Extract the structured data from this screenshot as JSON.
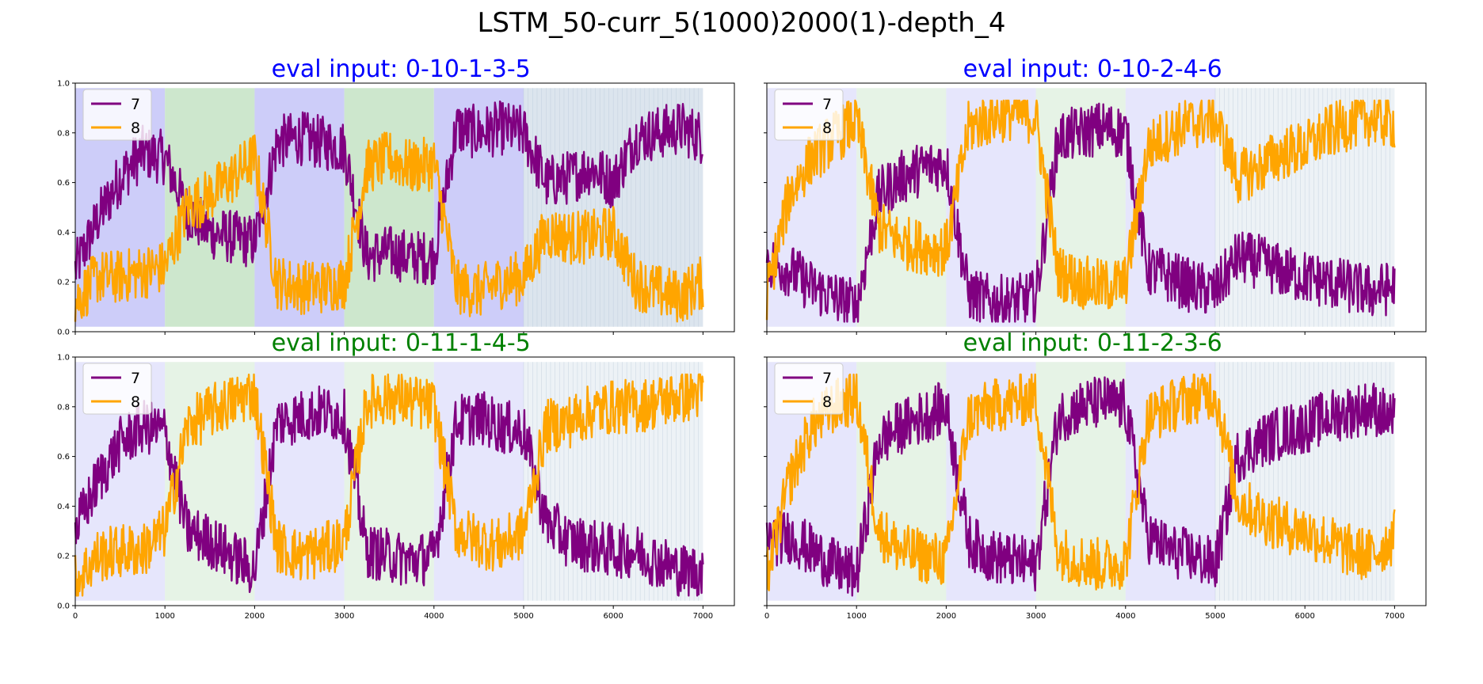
{
  "figure": {
    "suptitle": "LSTM_50-curr_5(1000)2000(1)-depth_4"
  },
  "colors": {
    "series_7": "#800080",
    "series_8": "#ffa500",
    "title_blue": "#0000ff",
    "title_green": "#008000",
    "band_blue": "#c8c8f8",
    "band_green": "#c8e4c8",
    "band_slate": "#d8e2ec"
  },
  "chart_data": [
    {
      "type": "line",
      "title": "eval input: 0-10-1-3-5",
      "title_color": "blue",
      "xlim": [
        0,
        7350
      ],
      "ylim": [
        0.0,
        1.0
      ],
      "x_ticks": [],
      "y_ticks": [
        "0.0",
        "0.2",
        "0.4",
        "0.6",
        "0.8",
        "1.0"
      ],
      "legend": {
        "placement": "upper-left",
        "entries": [
          "7",
          "8"
        ]
      },
      "bands": [
        {
          "x0": 0,
          "x1": 1000,
          "kind": "blue"
        },
        {
          "x0": 1000,
          "x1": 2000,
          "kind": "green"
        },
        {
          "x0": 2000,
          "x1": 3000,
          "kind": "blue"
        },
        {
          "x0": 3000,
          "x1": 4000,
          "kind": "green"
        },
        {
          "x0": 4000,
          "x1": 5000,
          "kind": "blue"
        },
        {
          "x0": 5000,
          "x1": 7000,
          "kind": "slate"
        }
      ],
      "band_opacity": 0.9,
      "series": [
        {
          "name": "7",
          "color": "purple",
          "x": [
            0,
            250,
            500,
            750,
            1000,
            1250,
            1500,
            1750,
            2000,
            2250,
            2500,
            2750,
            3000,
            3250,
            3500,
            3750,
            4000,
            4250,
            4500,
            4750,
            5000,
            5250,
            5500,
            5750,
            6000,
            6250,
            6500,
            6750,
            7000
          ],
          "y": [
            0.25,
            0.45,
            0.62,
            0.72,
            0.7,
            0.48,
            0.4,
            0.38,
            0.36,
            0.76,
            0.78,
            0.76,
            0.74,
            0.3,
            0.32,
            0.3,
            0.3,
            0.82,
            0.8,
            0.82,
            0.8,
            0.6,
            0.62,
            0.66,
            0.6,
            0.78,
            0.8,
            0.82,
            0.78
          ]
        },
        {
          "name": "8",
          "color": "orange",
          "x": [
            0,
            250,
            500,
            750,
            1000,
            1250,
            1500,
            1750,
            2000,
            2250,
            2500,
            2750,
            3000,
            3250,
            3500,
            3750,
            4000,
            4250,
            4500,
            4750,
            5000,
            5250,
            5500,
            5750,
            6000,
            6250,
            6500,
            6750,
            7000
          ],
          "y": [
            0.12,
            0.22,
            0.22,
            0.24,
            0.26,
            0.5,
            0.55,
            0.62,
            0.7,
            0.2,
            0.18,
            0.18,
            0.2,
            0.66,
            0.7,
            0.66,
            0.68,
            0.18,
            0.16,
            0.2,
            0.22,
            0.4,
            0.38,
            0.38,
            0.4,
            0.2,
            0.16,
            0.14,
            0.2
          ]
        }
      ]
    },
    {
      "type": "line",
      "title": "eval input: 0-10-2-4-6",
      "title_color": "blue",
      "xlim": [
        0,
        7350
      ],
      "ylim": [
        0.0,
        1.0
      ],
      "x_ticks": [],
      "y_ticks": [],
      "legend": {
        "placement": "upper-left",
        "entries": [
          "7",
          "8"
        ]
      },
      "bands": [
        {
          "x0": 0,
          "x1": 1000,
          "kind": "blue"
        },
        {
          "x0": 1000,
          "x1": 2000,
          "kind": "green"
        },
        {
          "x0": 2000,
          "x1": 3000,
          "kind": "blue"
        },
        {
          "x0": 3000,
          "x1": 4000,
          "kind": "green"
        },
        {
          "x0": 4000,
          "x1": 5000,
          "kind": "blue"
        },
        {
          "x0": 5000,
          "x1": 7000,
          "kind": "slate"
        }
      ],
      "band_opacity": 0.45,
      "series": [
        {
          "name": "7",
          "color": "purple",
          "x": [
            0,
            250,
            500,
            750,
            1000,
            1250,
            1500,
            1750,
            2000,
            2250,
            2500,
            2750,
            3000,
            3250,
            3500,
            3750,
            4000,
            4250,
            4500,
            4750,
            5000,
            5250,
            5500,
            5750,
            6000,
            6250,
            6500,
            6750,
            7000
          ],
          "y": [
            0.28,
            0.25,
            0.18,
            0.14,
            0.1,
            0.55,
            0.62,
            0.66,
            0.68,
            0.15,
            0.12,
            0.12,
            0.14,
            0.78,
            0.8,
            0.82,
            0.8,
            0.25,
            0.22,
            0.18,
            0.16,
            0.3,
            0.28,
            0.24,
            0.22,
            0.2,
            0.18,
            0.16,
            0.18
          ]
        },
        {
          "name": "8",
          "color": "orange",
          "x": [
            0,
            250,
            500,
            750,
            1000,
            1250,
            1500,
            1750,
            2000,
            2250,
            2500,
            2750,
            3000,
            3250,
            3500,
            3750,
            4000,
            4250,
            4500,
            4750,
            5000,
            5250,
            5500,
            5750,
            6000,
            6250,
            6500,
            6750,
            7000
          ],
          "y": [
            0.15,
            0.55,
            0.7,
            0.78,
            0.85,
            0.42,
            0.36,
            0.34,
            0.33,
            0.82,
            0.86,
            0.88,
            0.86,
            0.24,
            0.2,
            0.18,
            0.2,
            0.74,
            0.8,
            0.84,
            0.86,
            0.62,
            0.66,
            0.72,
            0.74,
            0.8,
            0.84,
            0.86,
            0.84
          ]
        }
      ]
    },
    {
      "type": "line",
      "title": "eval input: 0-11-1-4-5",
      "title_color": "green",
      "xlim": [
        0,
        7350
      ],
      "ylim": [
        0.0,
        1.0
      ],
      "x_ticks": [
        "0",
        "1000",
        "2000",
        "3000",
        "4000",
        "5000",
        "6000",
        "7000"
      ],
      "y_ticks": [
        "0.0",
        "0.2",
        "0.4",
        "0.6",
        "0.8",
        "1.0"
      ],
      "legend": {
        "placement": "upper-left",
        "entries": [
          "7",
          "8"
        ]
      },
      "bands": [
        {
          "x0": 0,
          "x1": 1000,
          "kind": "blue"
        },
        {
          "x0": 1000,
          "x1": 2000,
          "kind": "green"
        },
        {
          "x0": 2000,
          "x1": 3000,
          "kind": "blue"
        },
        {
          "x0": 3000,
          "x1": 4000,
          "kind": "green"
        },
        {
          "x0": 4000,
          "x1": 5000,
          "kind": "blue"
        },
        {
          "x0": 5000,
          "x1": 7000,
          "kind": "slate"
        }
      ],
      "band_opacity": 0.45,
      "series": [
        {
          "name": "7",
          "color": "purple",
          "x": [
            0,
            250,
            500,
            750,
            1000,
            1250,
            1500,
            1750,
            2000,
            2250,
            2500,
            2750,
            3000,
            3250,
            3500,
            3750,
            4000,
            4250,
            4500,
            4750,
            5000,
            5250,
            5500,
            5750,
            6000,
            6250,
            6500,
            6750,
            7000
          ],
          "y": [
            0.3,
            0.5,
            0.65,
            0.72,
            0.7,
            0.3,
            0.26,
            0.2,
            0.14,
            0.74,
            0.76,
            0.78,
            0.76,
            0.22,
            0.2,
            0.18,
            0.2,
            0.74,
            0.76,
            0.72,
            0.7,
            0.34,
            0.26,
            0.24,
            0.22,
            0.22,
            0.18,
            0.14,
            0.14
          ]
        },
        {
          "name": "8",
          "color": "orange",
          "x": [
            0,
            250,
            500,
            750,
            1000,
            1250,
            1500,
            1750,
            2000,
            2250,
            2500,
            2750,
            3000,
            3250,
            3500,
            3750,
            4000,
            4250,
            4500,
            4750,
            5000,
            5250,
            5500,
            5750,
            6000,
            6250,
            6500,
            6750,
            7000
          ],
          "y": [
            0.1,
            0.2,
            0.22,
            0.22,
            0.3,
            0.72,
            0.78,
            0.82,
            0.86,
            0.24,
            0.2,
            0.22,
            0.26,
            0.82,
            0.84,
            0.82,
            0.8,
            0.3,
            0.26,
            0.24,
            0.3,
            0.72,
            0.74,
            0.78,
            0.8,
            0.8,
            0.82,
            0.84,
            0.86
          ]
        }
      ]
    },
    {
      "type": "line",
      "title": "eval input: 0-11-2-3-6",
      "title_color": "green",
      "xlim": [
        0,
        7350
      ],
      "ylim": [
        0.0,
        1.0
      ],
      "x_ticks": [
        "0",
        "1000",
        "2000",
        "3000",
        "4000",
        "5000",
        "6000",
        "7000"
      ],
      "y_ticks": [],
      "legend": {
        "placement": "upper-left",
        "entries": [
          "7",
          "8"
        ]
      },
      "bands": [
        {
          "x0": 0,
          "x1": 1000,
          "kind": "blue"
        },
        {
          "x0": 1000,
          "x1": 2000,
          "kind": "green"
        },
        {
          "x0": 2000,
          "x1": 3000,
          "kind": "blue"
        },
        {
          "x0": 3000,
          "x1": 4000,
          "kind": "green"
        },
        {
          "x0": 4000,
          "x1": 5000,
          "kind": "blue"
        },
        {
          "x0": 5000,
          "x1": 7000,
          "kind": "slate"
        }
      ],
      "band_opacity": 0.45,
      "series": [
        {
          "name": "7",
          "color": "purple",
          "x": [
            0,
            250,
            500,
            750,
            1000,
            1250,
            1500,
            1750,
            2000,
            2250,
            2500,
            2750,
            3000,
            3250,
            3500,
            3750,
            4000,
            4250,
            4500,
            4750,
            5000,
            5250,
            5500,
            5750,
            6000,
            6250,
            6500,
            6750,
            7000
          ],
          "y": [
            0.26,
            0.28,
            0.22,
            0.16,
            0.12,
            0.66,
            0.72,
            0.76,
            0.8,
            0.26,
            0.2,
            0.18,
            0.16,
            0.76,
            0.8,
            0.82,
            0.8,
            0.28,
            0.22,
            0.2,
            0.16,
            0.6,
            0.66,
            0.7,
            0.72,
            0.76,
            0.78,
            0.8,
            0.74
          ]
        },
        {
          "name": "8",
          "color": "orange",
          "x": [
            0,
            250,
            500,
            750,
            1000,
            1250,
            1500,
            1750,
            2000,
            2250,
            2500,
            2750,
            3000,
            3250,
            3500,
            3750,
            4000,
            4250,
            4500,
            4750,
            5000,
            5250,
            5500,
            5750,
            6000,
            6250,
            6500,
            6750,
            7000
          ],
          "y": [
            0.12,
            0.5,
            0.72,
            0.8,
            0.84,
            0.3,
            0.22,
            0.2,
            0.18,
            0.76,
            0.8,
            0.82,
            0.84,
            0.22,
            0.18,
            0.16,
            0.18,
            0.76,
            0.8,
            0.84,
            0.86,
            0.42,
            0.36,
            0.32,
            0.3,
            0.26,
            0.22,
            0.2,
            0.28
          ]
        }
      ]
    }
  ]
}
